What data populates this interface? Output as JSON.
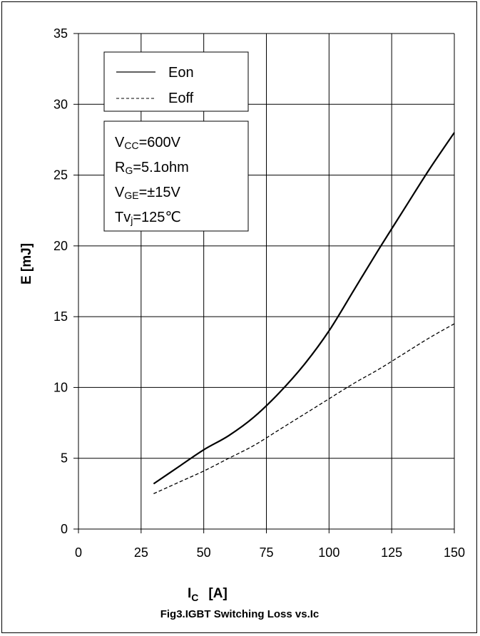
{
  "chart_data": {
    "type": "line",
    "title": "",
    "caption": "Fig3.IGBT Switching Loss vs.Ic",
    "xlabel": {
      "main": "I",
      "sub": "C",
      "unit": "[A]"
    },
    "ylabel": "E  [mJ]",
    "xlim": [
      0,
      150
    ],
    "ylim": [
      0,
      35
    ],
    "xticks": [
      "0",
      "25",
      "50",
      "75",
      "100",
      "125",
      "150"
    ],
    "yticks": [
      "0",
      "5",
      "10",
      "15",
      "20",
      "25",
      "30",
      "35"
    ],
    "grid": true,
    "legend_placement": "top-left",
    "series": [
      {
        "name": "Eon",
        "style": "solid",
        "color": "#000000",
        "x": [
          30,
          40,
          50,
          60,
          70,
          80,
          90,
          100,
          110,
          120,
          130,
          140,
          150
        ],
        "y": [
          3.2,
          4.4,
          5.6,
          6.6,
          7.9,
          9.6,
          11.6,
          14.0,
          16.9,
          19.8,
          22.6,
          25.4,
          28.0
        ]
      },
      {
        "name": "Eoff",
        "style": "dashed",
        "color": "#000000",
        "x": [
          30,
          40,
          50,
          60,
          70,
          80,
          90,
          100,
          110,
          120,
          130,
          140,
          150
        ],
        "y": [
          2.5,
          3.3,
          4.1,
          5.0,
          5.9,
          7.0,
          8.1,
          9.2,
          10.3,
          11.3,
          12.4,
          13.5,
          14.5
        ]
      }
    ],
    "conditions": [
      {
        "main": "V",
        "sub": "CC",
        "rest": "=600V"
      },
      {
        "main": "R",
        "sub": "G",
        "rest": "=5.1ohm"
      },
      {
        "main": "V",
        "sub": "GE",
        "rest": "=±15V"
      },
      {
        "main": "Tv",
        "sub": "j",
        "rest": "=125℃"
      }
    ]
  }
}
